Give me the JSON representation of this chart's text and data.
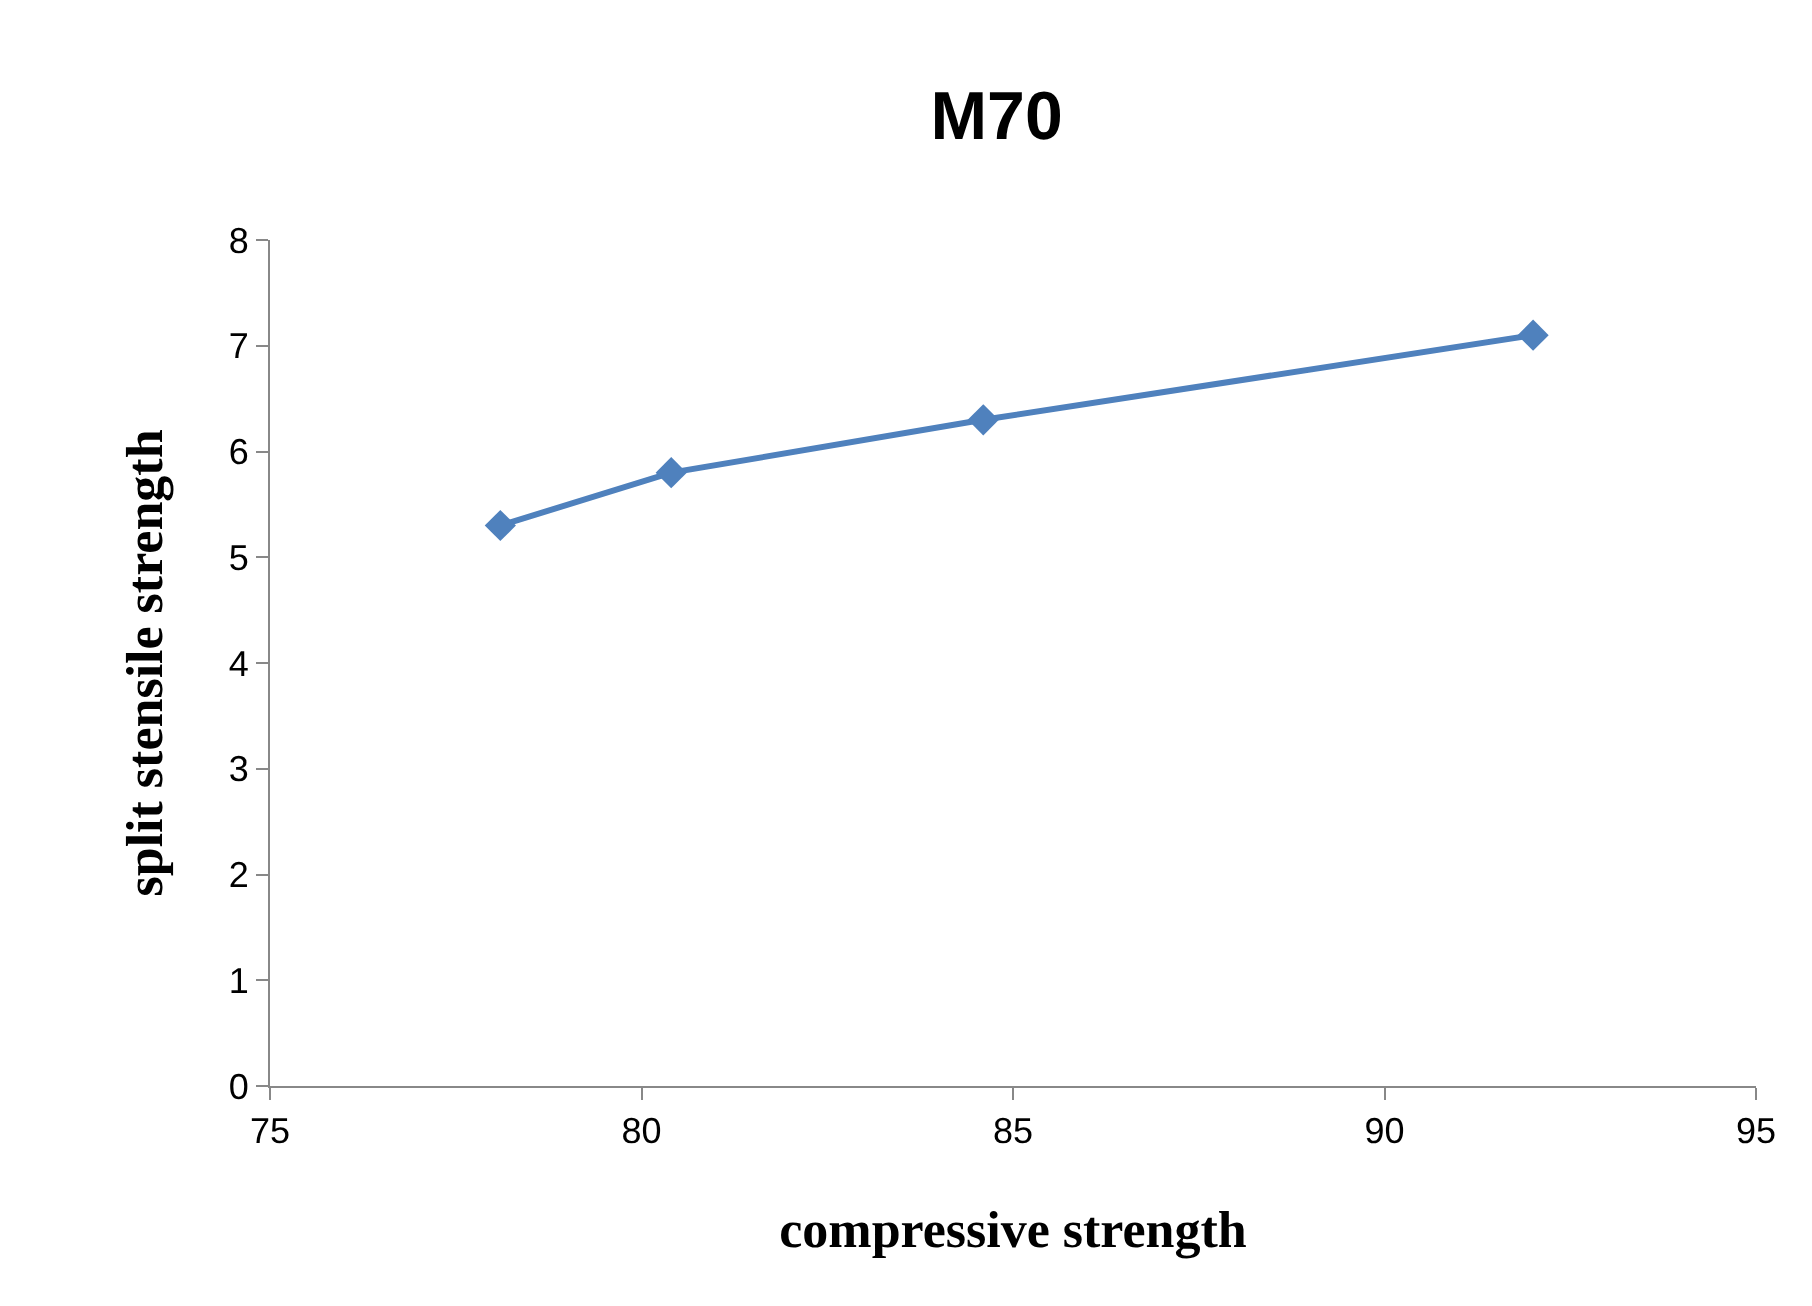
{
  "chart_data": {
    "type": "line",
    "title": "M70",
    "xlabel": "compressive strength",
    "ylabel": "split stensile strength",
    "x": [
      78.1,
      80.4,
      84.6,
      92.0
    ],
    "series": [
      {
        "color": "#4f81bd",
        "values": [
          5.3,
          5.8,
          6.3,
          7.1
        ]
      }
    ],
    "xlim": [
      75,
      95
    ],
    "xticks": [
      75,
      80,
      85,
      90,
      95
    ],
    "ylim": [
      0,
      8
    ],
    "yticks": [
      0,
      1,
      2,
      3,
      4,
      5,
      6,
      7,
      8
    ],
    "marker": "diamond",
    "line_style": "solid"
  }
}
